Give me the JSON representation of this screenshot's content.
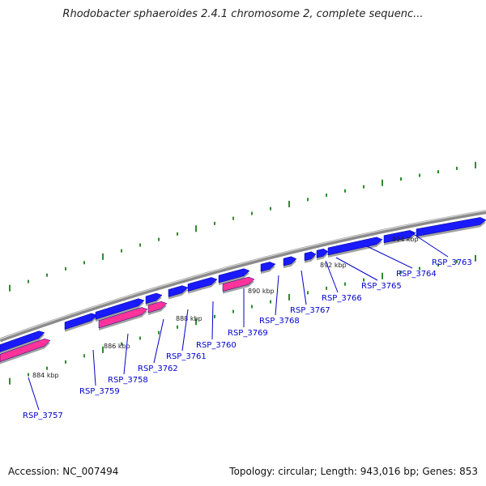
{
  "title": "Rhodobacter sphaeroides 2.4.1 chromosome 2, complete sequenc...",
  "footer": {
    "accession": "Accession: NC_007494",
    "summary": "Topology: circular; Length: 943,016 bp; Genes: 853"
  },
  "colors": {
    "forward_gene": "#1a1aff",
    "reverse_gene": "#ff3399",
    "backbone": "#8a8a8a",
    "tick": "#2e8b2e",
    "label": "#0000cc"
  },
  "kbp_labels": [
    "884 kbp",
    "886 kbp",
    "888 kbp",
    "890 kbp",
    "892 kbp",
    "894 kbp"
  ],
  "genes": [
    {
      "id": "RSP_3757",
      "strand": "reverse"
    },
    {
      "id": "RSP_3759",
      "strand": "forward"
    },
    {
      "id": "RSP_3758",
      "strand": "reverse"
    },
    {
      "id": "RSP_3762",
      "strand": "reverse"
    },
    {
      "id": "RSP_3761",
      "strand": "forward"
    },
    {
      "id": "RSP_3760",
      "strand": "forward"
    },
    {
      "id": "RSP_3769",
      "strand": "reverse"
    },
    {
      "id": "RSP_3768",
      "strand": "forward"
    },
    {
      "id": "RSP_3767",
      "strand": "forward"
    },
    {
      "id": "RSP_3766",
      "strand": "forward"
    },
    {
      "id": "RSP_3765",
      "strand": "forward"
    },
    {
      "id": "RSP_3764",
      "strand": "forward"
    },
    {
      "id": "RSP_3763",
      "strand": "forward"
    }
  ]
}
